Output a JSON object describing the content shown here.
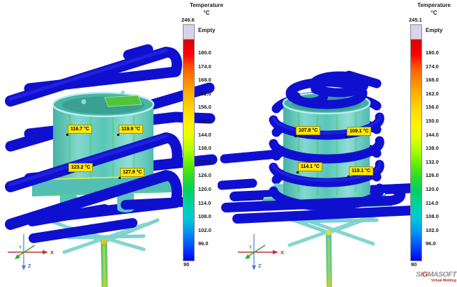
{
  "colorbars": {
    "left": {
      "title": "Temperature",
      "unit": "°C",
      "max": "246.6",
      "empty_label": "Empty",
      "ticks": [
        "180.0",
        "174.0",
        "168.0",
        "162.0",
        "156.0",
        "150.0",
        "144.0",
        "138.0",
        "132.0",
        "126.0",
        "120.0",
        "114.0",
        "108.0",
        "102.0",
        "96.0"
      ],
      "min": "90"
    },
    "right": {
      "title": "Temperature",
      "unit": "°C",
      "max": "245.1",
      "empty_label": "Empty",
      "ticks": [
        "180.0",
        "174.0",
        "168.0",
        "162.0",
        "156.0",
        "150.0",
        "144.0",
        "138.0",
        "132.0",
        "126.0",
        "120.0",
        "114.0",
        "108.0",
        "102.0",
        "96.0"
      ],
      "min": "90"
    }
  },
  "views": {
    "left": {
      "probes": [
        "116.7 °C",
        "119.9 °C",
        "123.2 °C",
        "127.9 °C"
      ],
      "axes": {
        "x": "X",
        "y": "Y",
        "z": "Z"
      }
    },
    "right": {
      "probes": [
        "107.8 °C",
        "109.1 °C",
        "114.1 °C",
        "118.1 °C"
      ],
      "axes": {
        "x": "X",
        "y": "Y",
        "z": "Z"
      }
    }
  },
  "logo": {
    "brand_prefix": "SI",
    "brand_accent": "G",
    "brand_suffix": "MASOFT",
    "tagline": "Virtual Molding"
  },
  "colors": {
    "pipe_blue": "#0f10cf",
    "mold_teal": "#55c4b6",
    "probe_yellow": "#ffe60a",
    "empty_swatch": "#d9d2ea",
    "scale_top": "#d80000",
    "scale_bottom": "#0000f0"
  }
}
